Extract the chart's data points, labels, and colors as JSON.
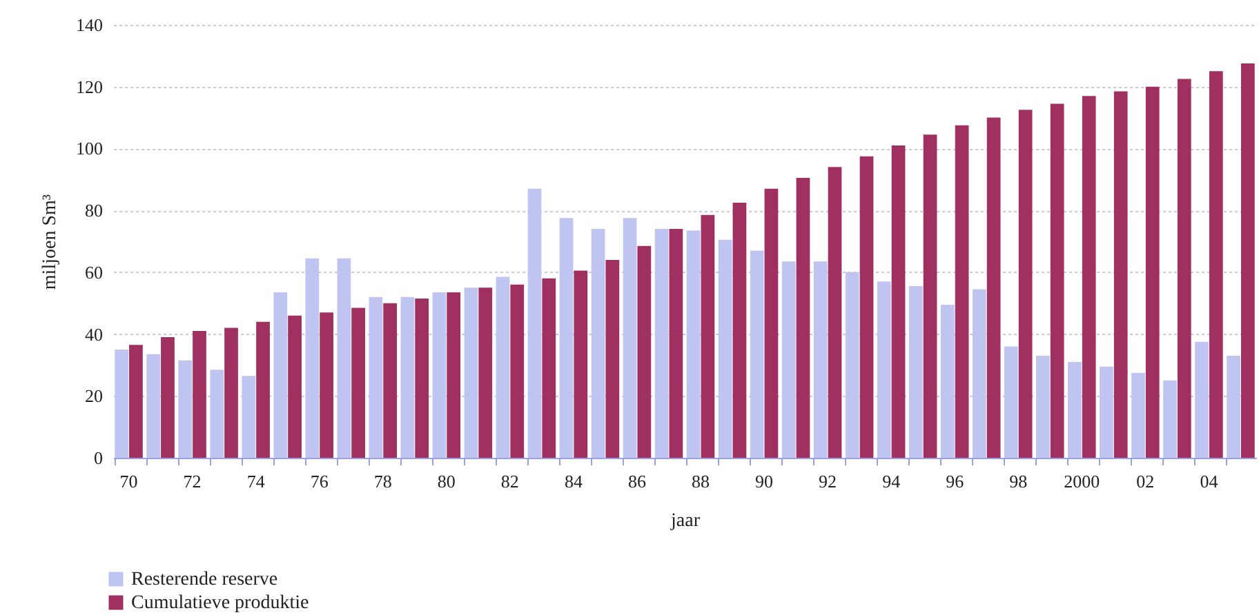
{
  "chart_data": {
    "type": "bar",
    "xlabel": "jaar",
    "ylabel": "miljoen Sm³",
    "categories": [
      "70",
      null,
      "72",
      null,
      "74",
      null,
      "76",
      null,
      "78",
      null,
      "80",
      null,
      "82",
      null,
      "84",
      null,
      "86",
      null,
      "88",
      null,
      "90",
      null,
      "92",
      null,
      "94",
      null,
      "96",
      null,
      "98",
      null,
      "2000",
      null,
      "02",
      null,
      "04",
      null
    ],
    "series": [
      {
        "name": "Resterende reserve",
        "color": "#c0c4f0",
        "values": [
          35,
          33.5,
          31.5,
          28.5,
          26.5,
          53.5,
          64.5,
          64.5,
          52,
          52,
          53.5,
          55,
          58.5,
          87,
          77.5,
          74,
          77.5,
          74,
          73.5,
          70.5,
          67,
          63.5,
          63.5,
          60,
          57,
          55.5,
          49.5,
          54.5,
          36,
          33,
          31,
          29.5,
          27.5,
          25,
          37.5,
          33
        ]
      },
      {
        "name": "Cumulatieve produktie",
        "color": "#a0305f",
        "values": [
          36.5,
          39,
          41,
          42,
          44,
          46,
          47,
          48.5,
          50,
          51.5,
          53.5,
          55,
          56,
          58,
          60.5,
          64,
          68.5,
          74,
          78.5,
          82.5,
          87,
          90.5,
          94,
          97.5,
          101,
          104.5,
          107.5,
          110,
          112.5,
          114.5,
          117,
          118.5,
          120,
          122.5,
          125,
          127.5
        ]
      }
    ],
    "ylim": [
      0,
      140
    ],
    "yticks": [
      0,
      20,
      40,
      60,
      80,
      100,
      120,
      140
    ],
    "grid": "y",
    "legend": "bottom left"
  }
}
